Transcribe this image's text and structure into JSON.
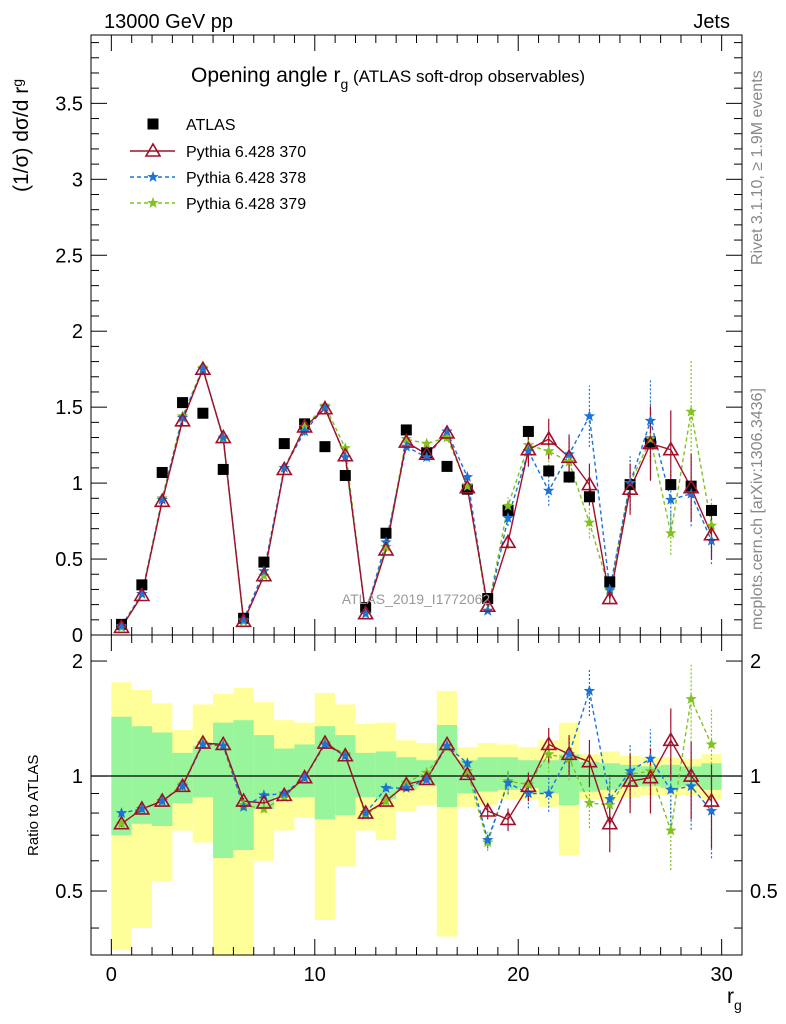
{
  "header": {
    "left": "13000 GeV pp",
    "right": "Jets"
  },
  "side_texts": {
    "rivet": "Rivet 3.1.10, ≥ 1.9M events",
    "mcplots": "mcplots.cern.ch [arXiv:1306.3436]"
  },
  "chart_data": [
    {
      "type": "scatter",
      "panel": "main",
      "title_main": "Opening angle r",
      "title_sub": "g",
      "title_rest": " (ATLAS soft-drop observables)",
      "ylabel_main": "(1/σ) dσ/d r",
      "ylabel_sub": "g",
      "watermark": "ATLAS_2019_I1772062",
      "xlim": [
        -1,
        31
      ],
      "ylim": [
        0,
        3.95
      ],
      "yticks": [
        0,
        0.5,
        1,
        1.5,
        2,
        2.5,
        3,
        3.5
      ],
      "ytick_labels": [
        "0",
        "0.5",
        "1",
        "1.5",
        "2",
        "2.5",
        "3",
        "3.5"
      ],
      "grid": false,
      "legend_position": "top-left",
      "x": [
        0.5,
        1.5,
        2.5,
        3.5,
        4.5,
        5.5,
        6.5,
        7.5,
        8.5,
        9.5,
        10.5,
        11.5,
        12.5,
        13.5,
        14.5,
        15.5,
        16.5,
        17.5,
        18.5,
        19.5,
        20.5,
        21.5,
        22.5,
        23.5,
        24.5,
        25.5,
        26.5,
        27.5,
        28.5,
        29.5
      ],
      "series": [
        {
          "name": "ATLAS",
          "color": "#000000",
          "marker": "square",
          "values": [
            0.07,
            0.33,
            1.07,
            1.53,
            1.46,
            1.09,
            0.11,
            0.48,
            1.26,
            1.39,
            1.24,
            1.05,
            0.18,
            0.67,
            1.35,
            1.2,
            1.11,
            0.96,
            0.24,
            0.82,
            1.34,
            1.08,
            1.04,
            0.91,
            0.35,
            0.99,
            1.27,
            0.99,
            0.98,
            0.82
          ]
        },
        {
          "name": "Pythia 6.428 370",
          "color": "#a0102a",
          "marker": "triangle-open",
          "line": "solid",
          "values": [
            0.05,
            0.26,
            0.88,
            1.41,
            1.75,
            1.3,
            0.09,
            0.39,
            1.09,
            1.37,
            1.49,
            1.18,
            0.14,
            0.56,
            1.27,
            1.19,
            1.33,
            0.97,
            0.19,
            0.61,
            1.22,
            1.29,
            1.17,
            0.99,
            0.24,
            0.96,
            1.26,
            1.22,
            0.97,
            0.66
          ]
        },
        {
          "name": "Pythia 6.428 378",
          "color": "#1a73d9",
          "marker": "star",
          "line": "dashed",
          "values": [
            0.06,
            0.27,
            0.89,
            1.43,
            1.75,
            1.3,
            0.1,
            0.42,
            1.1,
            1.34,
            1.5,
            1.17,
            0.14,
            0.61,
            1.24,
            1.17,
            1.34,
            1.04,
            0.16,
            0.77,
            1.21,
            0.95,
            1.19,
            1.44,
            0.3,
            1.0,
            1.41,
            0.89,
            0.93,
            0.62
          ]
        },
        {
          "name": "Pythia 6.428 379",
          "color": "#7fc31c",
          "marker": "star",
          "line": "dashed",
          "values": [
            0.05,
            0.27,
            0.9,
            1.44,
            1.76,
            1.29,
            0.09,
            0.39,
            1.1,
            1.37,
            1.51,
            1.23,
            0.14,
            0.58,
            1.29,
            1.26,
            1.3,
            0.98,
            0.16,
            0.85,
            1.25,
            1.21,
            1.14,
            0.74,
            0.29,
            1.0,
            1.29,
            0.67,
            1.47,
            0.72
          ]
        }
      ]
    },
    {
      "type": "scatter",
      "panel": "ratio",
      "ylabel": "Ratio to ATLAS",
      "xlabel_main": "r",
      "xlabel_sub": "g",
      "xlim": [
        -1,
        31
      ],
      "ylim": [
        0.34,
        2.34
      ],
      "xticks": [
        0,
        10,
        20,
        30
      ],
      "xtick_labels": [
        "0",
        "10",
        "20",
        "30"
      ],
      "yticks": [
        0.5,
        1,
        2
      ],
      "ytick_labels": [
        "0.5",
        "1",
        "2"
      ],
      "reference_line": 1,
      "band_inner_color": "#99f59b",
      "band_outer_color": "#ffff99",
      "band_inner": [
        [
          0.7,
          1.43
        ],
        [
          0.75,
          1.35
        ],
        [
          0.74,
          1.3
        ],
        [
          0.85,
          1.15
        ],
        [
          0.88,
          1.2
        ],
        [
          0.61,
          1.38
        ],
        [
          0.64,
          1.4
        ],
        [
          0.82,
          1.28
        ],
        [
          0.88,
          1.18
        ],
        [
          0.88,
          1.21
        ],
        [
          0.77,
          1.35
        ],
        [
          0.79,
          1.28
        ],
        [
          0.88,
          1.15
        ],
        [
          0.87,
          1.16
        ],
        [
          0.92,
          1.12
        ],
        [
          0.94,
          1.1
        ],
        [
          0.83,
          1.36
        ],
        [
          0.9,
          1.1
        ],
        [
          0.91,
          1.12
        ],
        [
          0.92,
          1.12
        ],
        [
          0.93,
          1.1
        ],
        [
          0.9,
          1.1
        ],
        [
          0.84,
          1.14
        ],
        [
          0.91,
          1.09
        ],
        [
          0.92,
          1.08
        ],
        [
          0.94,
          1.07
        ],
        [
          0.94,
          1.06
        ],
        [
          0.93,
          1.07
        ],
        [
          0.94,
          1.06
        ],
        [
          0.92,
          1.08
        ]
      ],
      "band_outer": [
        [
          0.35,
          1.76
        ],
        [
          0.4,
          1.68
        ],
        [
          0.53,
          1.55
        ],
        [
          0.72,
          1.32
        ],
        [
          0.67,
          1.54
        ],
        [
          0.33,
          1.64
        ],
        [
          0.33,
          1.7
        ],
        [
          0.6,
          1.56
        ],
        [
          0.72,
          1.4
        ],
        [
          0.78,
          1.38
        ],
        [
          0.42,
          1.65
        ],
        [
          0.58,
          1.54
        ],
        [
          0.72,
          1.37
        ],
        [
          0.68,
          1.38
        ],
        [
          0.81,
          1.24
        ],
        [
          0.84,
          1.22
        ],
        [
          0.38,
          1.67
        ],
        [
          0.83,
          1.19
        ],
        [
          0.84,
          1.22
        ],
        [
          0.87,
          1.21
        ],
        [
          0.87,
          1.19
        ],
        [
          0.83,
          1.24
        ],
        [
          0.62,
          1.38
        ],
        [
          0.87,
          1.14
        ],
        [
          0.86,
          1.16
        ],
        [
          0.88,
          1.13
        ],
        [
          0.89,
          1.12
        ],
        [
          0.89,
          1.12
        ],
        [
          0.89,
          1.11
        ],
        [
          0.87,
          1.14
        ]
      ],
      "series": [
        {
          "name": "Pythia 6.428 370",
          "color": "#a0102a",
          "marker": "triangle-open",
          "line": "solid",
          "values": [
            0.75,
            0.82,
            0.86,
            0.94,
            1.22,
            1.21,
            0.86,
            0.85,
            0.89,
            0.99,
            1.22,
            1.13,
            0.8,
            0.86,
            0.95,
            0.98,
            1.21,
            1.01,
            0.81,
            0.77,
            0.94,
            1.21,
            1.14,
            1.09,
            0.75,
            0.97,
            0.99,
            1.24,
            1.0,
            0.86
          ]
        },
        {
          "name": "Pythia 6.428 378",
          "color": "#1a73d9",
          "marker": "star",
          "line": "dashed",
          "values": [
            0.8,
            0.82,
            0.86,
            0.94,
            1.21,
            1.2,
            0.83,
            0.89,
            0.9,
            0.99,
            1.21,
            1.13,
            0.8,
            0.93,
            0.93,
            0.98,
            1.2,
            1.08,
            0.68,
            0.96,
            0.9,
            0.9,
            1.14,
            1.67,
            0.87,
            1.03,
            1.11,
            0.92,
            0.94,
            0.81
          ]
        },
        {
          "name": "Pythia 6.428 379",
          "color": "#7fc31c",
          "marker": "star",
          "line": "dashed",
          "values": [
            0.75,
            0.82,
            0.86,
            0.95,
            1.22,
            1.2,
            0.84,
            0.82,
            0.88,
            0.99,
            1.22,
            1.14,
            0.79,
            0.86,
            0.96,
            1.02,
            1.19,
            1.03,
            0.67,
            0.97,
            0.95,
            1.14,
            1.11,
            0.85,
            0.84,
            1.01,
            1.03,
            0.72,
            1.59,
            1.21
          ]
        }
      ]
    }
  ]
}
